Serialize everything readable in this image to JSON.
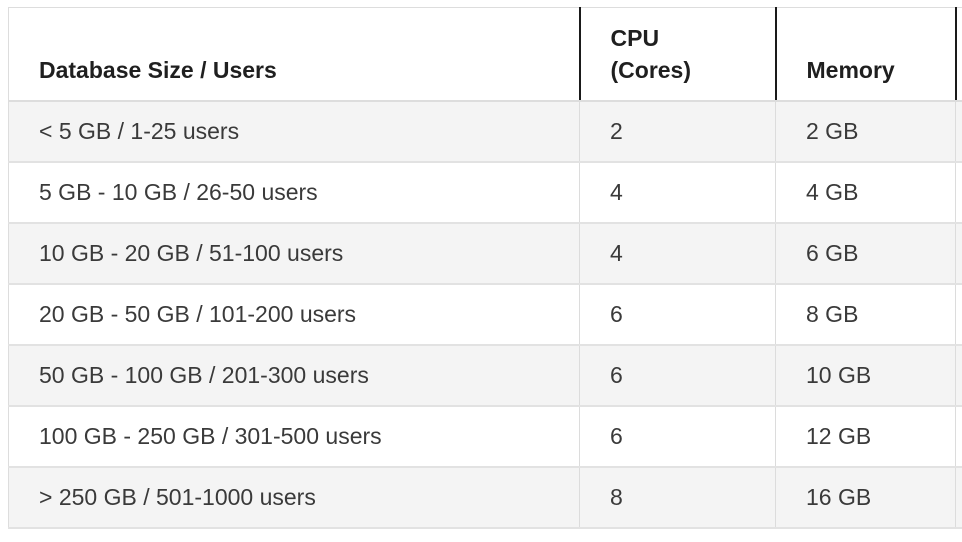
{
  "table": {
    "headers": {
      "size_users": "Database Size / Users",
      "cpu_line1": "CPU",
      "cpu_line2": "(Cores)",
      "memory": "Memory"
    },
    "rows": [
      {
        "size_users": "< 5 GB / 1-25 users",
        "cpu": "2",
        "memory": "2 GB"
      },
      {
        "size_users": "5 GB - 10 GB / 26-50 users",
        "cpu": "4",
        "memory": "4 GB"
      },
      {
        "size_users": "10 GB - 20 GB / 51-100 users",
        "cpu": "4",
        "memory": "6 GB"
      },
      {
        "size_users": "20 GB - 50 GB / 101-200 users",
        "cpu": "6",
        "memory": "8 GB"
      },
      {
        "size_users": "50 GB - 100 GB / 201-300 users",
        "cpu": "6",
        "memory": "10 GB"
      },
      {
        "size_users": "100 GB - 250 GB / 301-500 users",
        "cpu": "6",
        "memory": "12 GB"
      },
      {
        "size_users": "> 250 GB / 501-1000 users",
        "cpu": "8",
        "memory": "16 GB"
      }
    ]
  }
}
